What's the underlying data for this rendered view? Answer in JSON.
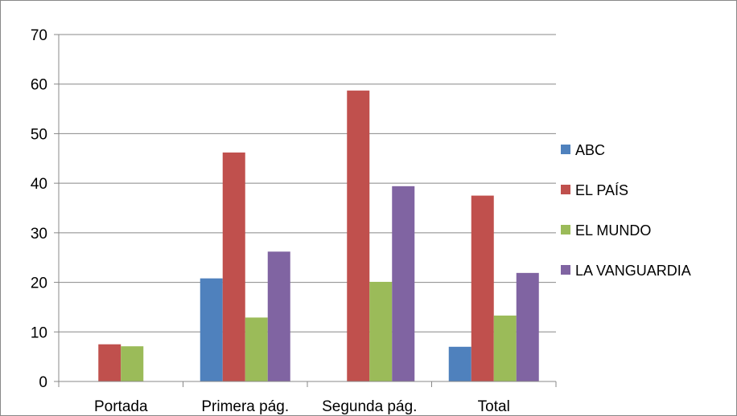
{
  "colors": {
    "border": "#888888",
    "axis": "#888888",
    "grid": "#888888"
  },
  "chart_data": {
    "type": "bar",
    "title": "",
    "xlabel": "",
    "ylabel": "",
    "ylim": [
      0,
      70
    ],
    "yticks": [
      "0",
      "10",
      "20",
      "30",
      "40",
      "50",
      "60",
      "70"
    ],
    "grid": true,
    "legend_position": "right",
    "categories": [
      "Portada",
      "Primera pág.",
      "Segunda pág.",
      "Total"
    ],
    "series": [
      {
        "name": "ABC",
        "color": "#4F81BD",
        "values": [
          0,
          20.8,
          0,
          7.0
        ]
      },
      {
        "name": "EL PAÍS",
        "color": "#C0504D",
        "values": [
          7.5,
          46.2,
          58.7,
          37.5
        ]
      },
      {
        "name": "EL MUNDO",
        "color": "#9BBB59",
        "values": [
          7.1,
          12.9,
          20.1,
          13.3
        ]
      },
      {
        "name": "LA VANGUARDIA",
        "color": "#8064A2",
        "values": [
          0,
          26.2,
          39.4,
          21.9
        ]
      }
    ]
  }
}
